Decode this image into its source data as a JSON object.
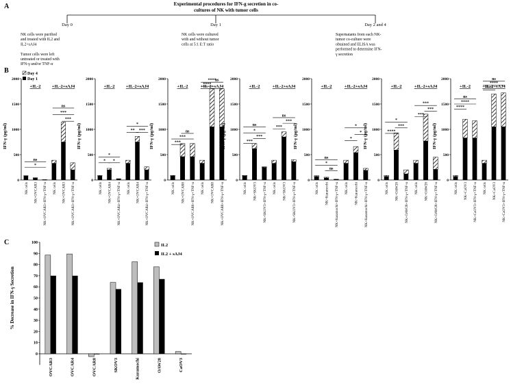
{
  "panel_A": {
    "label": "A",
    "title": "Experimental procedures  for IFN-g secretion  in co-cultures of NK with tumor cells",
    "steps": [
      {
        "day": "Day 0",
        "text": [
          "NK cells were purified",
          "and treated with IL2 and",
          "IL2+sAJ4",
          "",
          "Tumor cells were left",
          "untreated or treated with",
          "IFN-γ and/or TNF-α"
        ]
      },
      {
        "day": "Day 1",
        "text": [
          "NK cells were cultured",
          "with and without tumor",
          "cells at 5:1 E:T ratio"
        ]
      },
      {
        "day": "Day 2 and 4",
        "text": [
          "Supernatants from each NK-",
          "tumor co-culture were",
          "obtained and ELISA was",
          "performed to determine IFN-",
          "γ secretion"
        ]
      }
    ]
  },
  "panel_B": {
    "label": "B",
    "legend": [
      {
        "name": "Day 4",
        "pattern": "hatch"
      },
      {
        "name": "Day 1",
        "pattern": "solid"
      }
    ],
    "group_labels": {
      "il2": "+IL-2",
      "il2_saj4": "+IL-2+sAJ4"
    },
    "ylabel": "IFN-γ (pg/ml)"
  },
  "panel_C": {
    "label": "C",
    "ylabel": "% Decrease in IFN-γ Secretion",
    "legend": [
      {
        "name": "IL2",
        "color": "#bdbdbd"
      },
      {
        "name": "IL2 + sAJ4",
        "color": "#000000"
      }
    ]
  },
  "colors": {
    "day1": "#000000",
    "day4_hatch": "#000000",
    "il2_bar": "#bdbdbd",
    "il2_saj4_bar": "#000000"
  },
  "chart_data": [
    {
      "type": "bar",
      "panel": "B",
      "title": "",
      "ylabel": "IFN-γ (pg/ml)",
      "ylim": [
        0,
        2000
      ],
      "y_ticks": [
        0,
        500,
        1000,
        1500,
        2000
      ],
      "categories": [
        "NK cells",
        "NK+OVCAR3",
        "NK+OVCAR3+IFN-γ+TNF-α",
        "NK cells",
        "NK+OVCAR3",
        "NK+OVCAR3+IFN-γ+TNF-α"
      ],
      "series": [
        {
          "name": "Day 1",
          "values": [
            80,
            35,
            5,
            330,
            750,
            200
          ]
        },
        {
          "name": "Day 4",
          "values": [
            85,
            45,
            8,
            390,
            1140,
            340
          ]
        }
      ],
      "significance": [
        {
          "text": "ns",
          "from": 0,
          "to": 2,
          "y": 360
        },
        {
          "text": "*",
          "from": 0,
          "to": 2,
          "y": 250
        },
        {
          "text": "ns",
          "from": 3,
          "to": 5,
          "y": 1420
        },
        {
          "text": "***",
          "from": 3,
          "to": 5,
          "y": 1290
        },
        {
          "text": "***",
          "from": 4,
          "to": 5,
          "y": 1160
        }
      ]
    },
    {
      "type": "bar",
      "panel": "B",
      "title": "",
      "ylabel": "IFN-γ (pg/ml)",
      "ylim": [
        0,
        2000
      ],
      "y_ticks": [
        0,
        500,
        1000,
        1500,
        2000
      ],
      "categories": [
        "NK cells",
        "NK+OVCAR4",
        "NK+OVCAR4+IFN-γ+TNF-α",
        "NK cells",
        "NK+OVCAR4",
        "NK+OVCAR4+IFN-γ+TNF-α"
      ],
      "series": [
        {
          "name": "Day 1",
          "values": [
            80,
            200,
            20,
            330,
            750,
            200
          ]
        },
        {
          "name": "Day 4",
          "values": [
            90,
            230,
            25,
            390,
            860,
            260
          ]
        }
      ],
      "significance": [
        {
          "text": "*",
          "from": 0,
          "to": 2,
          "y": 450
        },
        {
          "text": "*",
          "from": 0,
          "to": 1,
          "y": 340
        },
        {
          "text": "*",
          "from": 1,
          "to": 2,
          "y": 340
        },
        {
          "text": "*",
          "from": 3,
          "to": 5,
          "y": 1060
        },
        {
          "text": "**",
          "from": 3,
          "to": 4,
          "y": 940
        },
        {
          "text": "***",
          "from": 4,
          "to": 5,
          "y": 940
        }
      ]
    },
    {
      "type": "bar",
      "panel": "B",
      "title": "",
      "ylabel": "IFN-γ (pg/ml)",
      "ylim": [
        0,
        2000
      ],
      "y_ticks": [
        0,
        500,
        1000,
        1500,
        2000
      ],
      "categories": [
        "NK cells",
        "NK+OVCAR8",
        "NK+OVCAR8+IFN-γ+TNF-α",
        "NK cells",
        "NK+OVCAR8",
        "NK+OVCAR8+IFN-γ+TNF-α"
      ],
      "series": [
        {
          "name": "Day 1",
          "values": [
            80,
            460,
            460,
            330,
            1050,
            1050
          ]
        },
        {
          "name": "Day 4",
          "values": [
            90,
            720,
            720,
            390,
            1800,
            1800
          ]
        }
      ],
      "significance": [
        {
          "text": "ns",
          "from": 1,
          "to": 2,
          "y": 920
        },
        {
          "text": "***",
          "from": 0,
          "to": 2,
          "y": 810
        },
        {
          "text": "***",
          "from": 0,
          "to": 1,
          "y": 700
        },
        {
          "text": "****",
          "from": 3,
          "to": 5,
          "y": 1930
        },
        {
          "text": "ns",
          "from": 4,
          "to": 5,
          "y": 1930
        },
        {
          "text": "****",
          "from": 3,
          "to": 4,
          "y": 1850
        }
      ]
    },
    {
      "type": "bar",
      "panel": "B",
      "title": "",
      "ylabel": "IFN-γ (pg/ml)",
      "ylim": [
        0,
        2000
      ],
      "y_ticks": [
        0,
        500,
        1000,
        1500,
        2000
      ],
      "categories": [
        "NK cells",
        "NK+SKOV3",
        "NK+SKOV3+IFN-γ+TNF-α",
        "NK cells",
        "NK+SKOV3",
        "NK+SKOV3+IFN-γ+TNF-α"
      ],
      "series": [
        {
          "name": "Day 1",
          "values": [
            80,
            620,
            250,
            330,
            850,
            360
          ]
        },
        {
          "name": "Day 4",
          "values": [
            90,
            720,
            260,
            390,
            950,
            400
          ]
        }
      ],
      "significance": [
        {
          "text": "ns",
          "from": 0,
          "to": 2,
          "y": 1050
        },
        {
          "text": "*",
          "from": 0,
          "to": 2,
          "y": 930
        },
        {
          "text": "***",
          "from": 1,
          "to": 2,
          "y": 820
        },
        {
          "text": "***",
          "from": 0,
          "to": 1,
          "y": 720
        },
        {
          "text": "ns",
          "from": 3,
          "to": 5,
          "y": 1230
        },
        {
          "text": "***",
          "from": 4,
          "to": 5,
          "y": 1120
        },
        {
          "text": "***",
          "from": 3,
          "to": 4,
          "y": 1010
        }
      ]
    },
    {
      "type": "bar",
      "panel": "B",
      "title": "",
      "ylabel": "IFN-γ (pg/ml)",
      "ylim": [
        0,
        2000
      ],
      "y_ticks": [
        0,
        500,
        1000,
        1500,
        2000
      ],
      "categories": [
        "NK cells",
        "NK+Kuramochi",
        "NK+Kuramochi+IFN-γ+TNF-α",
        "NK cells",
        "NK+Kuramochi",
        "NK+Kuramochi+IFN-γ+TNF-α"
      ],
      "series": [
        {
          "name": "Day 1",
          "values": [
            70,
            40,
            10,
            330,
            540,
            190
          ]
        },
        {
          "name": "Day 4",
          "values": [
            85,
            55,
            15,
            390,
            660,
            230
          ]
        }
      ],
      "significance": [
        {
          "text": "ns",
          "from": 0,
          "to": 2,
          "y": 400
        },
        {
          "text": "*",
          "from": 0,
          "to": 2,
          "y": 290
        },
        {
          "text": "ns",
          "from": 1,
          "to": 2,
          "y": 180
        },
        {
          "text": "*",
          "from": 3,
          "to": 5,
          "y": 1030
        },
        {
          "text": "*",
          "from": 4,
          "to": 5,
          "y": 900
        },
        {
          "text": "*",
          "from": 3,
          "to": 4,
          "y": 780
        }
      ]
    },
    {
      "type": "bar",
      "panel": "B",
      "title": "",
      "ylabel": "IFN-γ (pg/ml)",
      "ylim": [
        0,
        2000
      ],
      "y_ticks": [
        0,
        500,
        1000,
        1500,
        2000
      ],
      "categories": [
        "NK cells",
        "NK+OAW28",
        "NK+OAW28+IFN-γ+TNF-α",
        "NK cells",
        "NK+OAW28",
        "NK+OAW28+IFN-γ+TNF-α"
      ],
      "series": [
        {
          "name": "Day 1",
          "values": [
            70,
            590,
            120,
            330,
            770,
            210
          ]
        },
        {
          "name": "Day 4",
          "values": [
            90,
            930,
            200,
            390,
            1300,
            450
          ]
        }
      ],
      "significance": [
        {
          "text": "*",
          "from": 0,
          "to": 2,
          "y": 1140
        },
        {
          "text": "***",
          "from": 1,
          "to": 2,
          "y": 1030
        },
        {
          "text": "****",
          "from": 0,
          "to": 1,
          "y": 920
        },
        {
          "text": "***",
          "from": 3,
          "to": 5,
          "y": 1470
        },
        {
          "text": "***",
          "from": 4,
          "to": 5,
          "y": 1360
        },
        {
          "text": "***",
          "from": 3,
          "to": 4,
          "y": 1250
        }
      ]
    },
    {
      "type": "bar",
      "panel": "B",
      "title": "",
      "ylabel": "IFN-γ (pg/ml)",
      "ylim": [
        0,
        2000
      ],
      "y_ticks": [
        0,
        500,
        1000,
        1500,
        2000
      ],
      "categories": [
        "NK cells",
        "NK+CaOV3",
        "NK+CaOV3+IFN-γ+TNF-α",
        "NK cells",
        "NK+CaOV3",
        "NK+CaOV3+IFN-γ+TNF-α"
      ],
      "series": [
        {
          "name": "Day 1",
          "values": [
            70,
            830,
            830,
            330,
            1050,
            1050
          ]
        },
        {
          "name": "Day 4",
          "values": [
            90,
            1200,
            1170,
            390,
            1700,
            1720
          ]
        }
      ],
      "significance": [
        {
          "text": "ns",
          "from": 0,
          "to": 2,
          "y": 1600
        },
        {
          "text": "****",
          "from": 0,
          "to": 2,
          "y": 1500
        },
        {
          "text": "****",
          "from": 0,
          "to": 1,
          "y": 1400
        },
        {
          "text": "ns",
          "from": 3,
          "to": 5,
          "y": 1950
        },
        {
          "text": "****",
          "from": 3,
          "to": 5,
          "y": 1870
        },
        {
          "text": "****",
          "from": 3,
          "to": 4,
          "y": 1780
        }
      ]
    },
    {
      "type": "bar",
      "panel": "C",
      "title": "",
      "xlabel": "",
      "ylabel": "% Decrease in IFN-γ Secretion",
      "ylim": [
        -10,
        100
      ],
      "y_ticks": [
        0,
        10,
        20,
        30,
        40,
        50,
        60,
        70,
        80,
        90,
        100
      ],
      "categories": [
        "OVCAR3",
        "OVCAR4",
        "OVCAR8",
        "SKOV3",
        "Kuramochi",
        "OAW28",
        "CaOV3"
      ],
      "series": [
        {
          "name": "IL2",
          "values": [
            88.5,
            89.5,
            -2.5,
            64,
            82.5,
            78,
            2
          ]
        },
        {
          "name": "IL2 + sAJ4",
          "values": [
            70,
            70,
            0,
            58,
            64,
            67,
            -0.5
          ]
        }
      ],
      "grid": false,
      "legend_position": "top-right"
    }
  ]
}
